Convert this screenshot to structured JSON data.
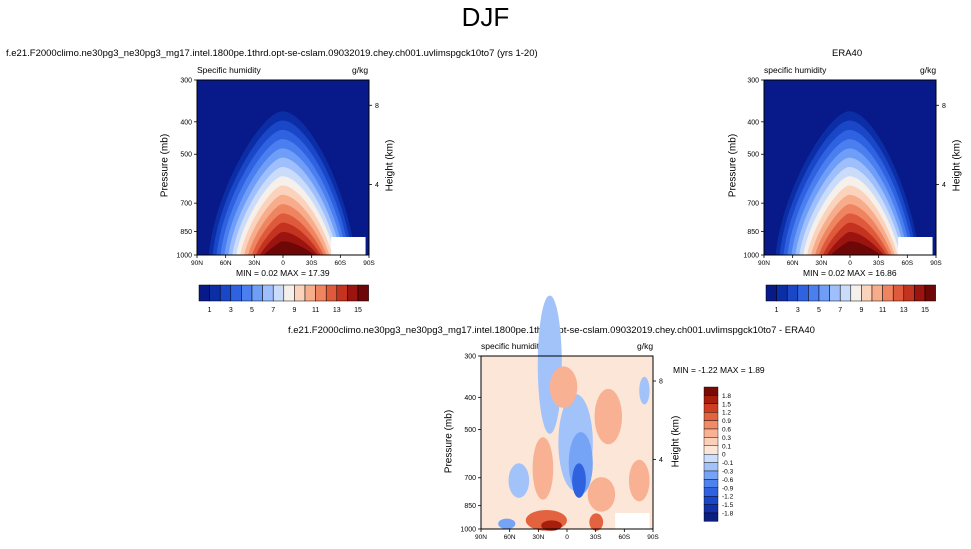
{
  "page": {
    "title": "DJF"
  },
  "colors": {
    "plot_bg": "#0a1f8f",
    "q_scale": [
      "#08198a",
      "#0b2ea6",
      "#1a47c8",
      "#2e62e0",
      "#4b7ff0",
      "#6f9ef8",
      "#9ebffb",
      "#cbdcfb",
      "#f6f0ea",
      "#fbd3bd",
      "#f7ad8b",
      "#ee8460",
      "#df5a3c",
      "#c4331f",
      "#9c1410",
      "#6e0707"
    ],
    "diff_scale": [
      "#0a1f7f",
      "#1230a8",
      "#1a46c9",
      "#2f62de",
      "#4e82ee",
      "#75a3f6",
      "#a2c2fa",
      "#cbdefb",
      "#fbe6d8",
      "#fbd0b6",
      "#f8b192",
      "#f08b66",
      "#e36240",
      "#cf3c1f",
      "#a81e0c",
      "#7a0a04"
    ]
  },
  "panels": {
    "model": {
      "caption": "f.e21.F2000climo.ne30pg3_ne30pg3_mg17.intel.1800pe.1thrd.opt-se-cslam.09032019.chey.ch001.uvlimspgck10to7 (yrs 1-20)",
      "left_label": "Specific humidity",
      "right_label": "g/kg",
      "minmax": "MIN =  0.02   MAX =  17.39"
    },
    "obs": {
      "caption": "ERA40",
      "left_label": "specific humidity",
      "right_label": "g/kg",
      "minmax": "MIN =  0.02   MAX =  16.86"
    },
    "diff": {
      "caption": "f.e21.F2000climo.ne30pg3_ne30pg3_mg17.intel.1800pe.1thrd.opt-se-cslam.09032019.chey.ch001.uvlimspgck10to7 - ERA40",
      "left_label": "specific humidity",
      "right_label": "g/kg",
      "minmax": "MIN =  -1.22   MAX =   1.89"
    }
  },
  "axes": {
    "ylabel": "Pressure (mb)",
    "y2label": "Height (km)",
    "pressure_ticks": [
      "300",
      "400",
      "500",
      "700",
      "850",
      "1000"
    ],
    "height_ticks": [
      "8",
      "4"
    ],
    "lat_ticks": [
      "90N",
      "60N",
      "30N",
      "0",
      "30S",
      "60S",
      "90S"
    ]
  },
  "colorbar_q": {
    "labels": [
      "1",
      "3",
      "5",
      "7",
      "9",
      "11",
      "13",
      "15"
    ]
  },
  "colorbar_diff": {
    "labels": [
      "1.8",
      "1.5",
      "1.2",
      "0.9",
      "0.6",
      "0.3",
      "0.1",
      "0",
      "-0.1",
      "-0.3",
      "-0.6",
      "-0.9",
      "-1.2",
      "-1.5",
      "-1.8"
    ]
  },
  "chart_data": [
    {
      "type": "heatmap",
      "title": "f.e21.F2000climo.ne30pg3_ne30pg3_mg17.intel.1800pe.1thrd.opt-se-cslam.09032019.chey.ch001.uvlimspgck10to7 (yrs 1-20)",
      "variable": "Specific humidity",
      "units": "g/kg",
      "xlabel": "",
      "ylabel": "Pressure (mb)",
      "y2label": "Height (km)",
      "x_ticks": [
        "90N",
        "60N",
        "30N",
        "0",
        "30S",
        "60S",
        "90S"
      ],
      "y_ticks": [
        300,
        400,
        500,
        700,
        850,
        1000
      ],
      "min": 0.02,
      "max": 17.39,
      "contour_levels": [
        1,
        2,
        3,
        4,
        5,
        6,
        7,
        8,
        9,
        10,
        11,
        12,
        13,
        14,
        15
      ]
    },
    {
      "type": "heatmap",
      "title": "ERA40",
      "variable": "specific humidity",
      "units": "g/kg",
      "xlabel": "",
      "ylabel": "Pressure (mb)",
      "y2label": "Height (km)",
      "x_ticks": [
        "90N",
        "60N",
        "30N",
        "0",
        "30S",
        "60S",
        "90S"
      ],
      "y_ticks": [
        300,
        400,
        500,
        700,
        850,
        1000
      ],
      "min": 0.02,
      "max": 16.86,
      "contour_levels": [
        1,
        2,
        3,
        4,
        5,
        6,
        7,
        8,
        9,
        10,
        11,
        12,
        13,
        14,
        15
      ]
    },
    {
      "type": "heatmap",
      "title": "f.e21.F2000climo.ne30pg3_ne30pg3_mg17.intel.1800pe.1thrd.opt-se-cslam.09032019.chey.ch001.uvlimspgck10to7 - ERA40",
      "variable": "specific humidity",
      "units": "g/kg",
      "xlabel": "",
      "ylabel": "Pressure (mb)",
      "y2label": "Height (km)",
      "x_ticks": [
        "90N",
        "60N",
        "30N",
        "0",
        "30S",
        "60S",
        "90S"
      ],
      "y_ticks": [
        300,
        400,
        500,
        700,
        850,
        1000
      ],
      "min": -1.22,
      "max": 1.89,
      "contour_levels": [
        -1.8,
        -1.5,
        -1.2,
        -0.9,
        -0.6,
        -0.3,
        -0.1,
        0,
        0.1,
        0.3,
        0.6,
        0.9,
        1.2,
        1.5,
        1.8
      ]
    }
  ]
}
